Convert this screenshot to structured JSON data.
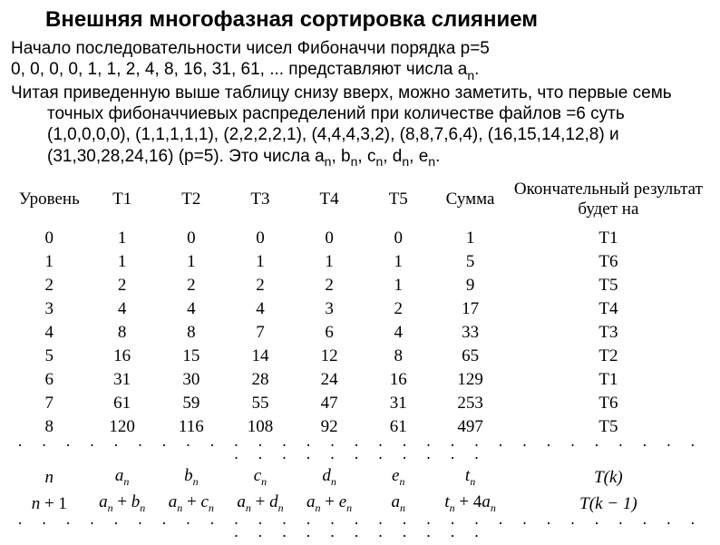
{
  "title": "Внешняя многофазная сортировка слиянием",
  "para1": "Начало последовательности чисел Фибоначчи порядка p=5",
  "para2a": "0, 0, 0, 0, 1, 1, 2, 4, 8, 16, 31, 61, ... представляют числа a",
  "para2b": ".",
  "para3": "Читая приведенную выше таблицу снизу вверх, можно заметить, что первые семь точных фибоначчиевых распределений при количестве файлов =6 суть (1,0,0,0,0), (1,1,1,1,1), (2,2,2,2,1), (4,4,4,3,2), (8,8,7,6,4), (16,15,14,12,8) и (31,30,28,24,16) (p=5). Это числа a",
  "para3_tail": ".",
  "sub_n": "n",
  "seq_b": ", b",
  "seq_c": ", c",
  "seq_d": ", d",
  "seq_e": ", e",
  "headers": {
    "level": "Уровень",
    "t1": "T1",
    "t2": "T2",
    "t3": "T3",
    "t4": "T4",
    "t5": "T5",
    "sum": "Сумма",
    "result_l1": "Окончательный результат",
    "result_l2": "будет на"
  },
  "rows": [
    {
      "lvl": "0",
      "t1": "1",
      "t2": "0",
      "t3": "0",
      "t4": "0",
      "t5": "0",
      "sum": "1",
      "res": "T1"
    },
    {
      "lvl": "1",
      "t1": "1",
      "t2": "1",
      "t3": "1",
      "t4": "1",
      "t5": "1",
      "sum": "5",
      "res": "T6"
    },
    {
      "lvl": "2",
      "t1": "2",
      "t2": "2",
      "t3": "2",
      "t4": "2",
      "t5": "1",
      "sum": "9",
      "res": "T5"
    },
    {
      "lvl": "3",
      "t1": "4",
      "t2": "4",
      "t3": "4",
      "t4": "3",
      "t5": "2",
      "sum": "17",
      "res": "T4"
    },
    {
      "lvl": "4",
      "t1": "8",
      "t2": "8",
      "t3": "7",
      "t4": "6",
      "t5": "4",
      "sum": "33",
      "res": "T3"
    },
    {
      "lvl": "5",
      "t1": "16",
      "t2": "15",
      "t3": "14",
      "t4": "12",
      "t5": "8",
      "sum": "65",
      "res": "T2"
    },
    {
      "lvl": "6",
      "t1": "31",
      "t2": "30",
      "t3": "28",
      "t4": "24",
      "t5": "16",
      "sum": "129",
      "res": "T1"
    },
    {
      "lvl": "7",
      "t1": "61",
      "t2": "59",
      "t3": "55",
      "t4": "47",
      "t5": "31",
      "sum": "253",
      "res": "T6"
    },
    {
      "lvl": "8",
      "t1": "120",
      "t2": "116",
      "t3": "108",
      "t4": "92",
      "t5": "61",
      "sum": "497",
      "res": "T5"
    }
  ],
  "formula": {
    "row1": {
      "lvl": "n",
      "t1": "aₙ",
      "t2": "bₙ",
      "t3": "cₙ",
      "t4": "dₙ",
      "t5": "eₙ",
      "sum": "tₙ",
      "res": "T(k)"
    },
    "row2": {
      "lvl": "n + 1",
      "t1": "aₙ + bₙ",
      "t2": "aₙ + cₙ",
      "t3": "aₙ + dₙ",
      "t4": "aₙ + eₙ",
      "t5": "aₙ",
      "sum": "tₙ + 4aₙ",
      "res": "T(k − 1)"
    }
  },
  "dots": "· · · · · · · · · · · · · · · · · · · · · · · · · · · · · · · · · · · · · · · ·",
  "style": {
    "background_color": "#ffffff",
    "text_color": "#000000",
    "title_fontsize": 24,
    "body_fontsize": 19,
    "table_font": "Times New Roman"
  }
}
